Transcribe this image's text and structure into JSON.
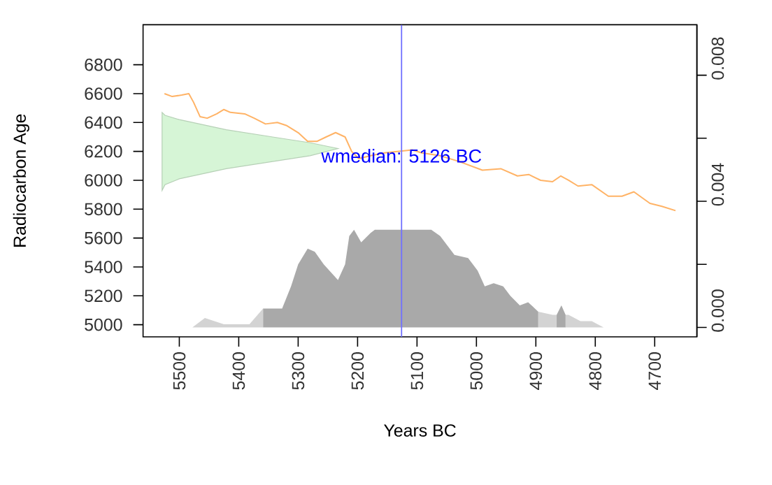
{
  "chart_data": {
    "type": "line",
    "xlabel": "Years BC",
    "ylabel": "Radiocarbon Age",
    "xlim": [
      5561,
      4629
    ],
    "ylim": [
      4916,
      7077
    ],
    "y2lim": [
      -0.0003,
      0.0096
    ],
    "xticks": [
      5500,
      5400,
      5300,
      5200,
      5100,
      5000,
      4900,
      4800,
      4700
    ],
    "yticks": [
      5000,
      5200,
      5400,
      5600,
      5800,
      6000,
      6200,
      6400,
      6600,
      6800
    ],
    "y2ticks": [
      {
        "value": 0,
        "label": "0.000"
      },
      {
        "value": 0.002,
        "label": null
      },
      {
        "value": 0.004,
        "label": "0.004"
      },
      {
        "value": 0.006,
        "label": null
      },
      {
        "value": 0.008,
        "label": "0.008"
      }
    ],
    "ref_lines": [
      {
        "axis": "x",
        "value": 5126,
        "label": "wmedian: 5126 BC",
        "color": "#7070ff"
      }
    ],
    "series": [
      {
        "type": "area",
        "axis": "y2",
        "color": "#d3d3d3",
        "x": [
          5478,
          5457,
          5425,
          5382,
          5359,
          5358,
          4896,
          4872,
          4865,
          4864,
          4850,
          4845,
          4825,
          4806,
          4786,
          4716,
          4715
        ],
        "values": [
          0,
          0.0003,
          0.0001,
          0.0001,
          0.0006,
          null,
          0.0005,
          0.0004,
          0.0004,
          null,
          0.0004,
          0.0004,
          0.0002,
          0.0002,
          0,
          0,
          0
        ]
      },
      {
        "type": "area",
        "axis": "y2",
        "color": "#a9a9a9",
        "x": [
          5359,
          5327,
          5312,
          5300,
          5284,
          5272,
          5257,
          5233,
          5221,
          5214,
          5206,
          5194,
          5178,
          5171,
          5076,
          5061,
          5049,
          5037,
          5014,
          4998,
          4986,
          4971,
          4955,
          4943,
          4927,
          4913,
          4896,
          4880,
          4865,
          4857,
          4850
        ],
        "values": [
          0.0006,
          0.0006,
          0.0013,
          0.002,
          0.0025,
          0.0024,
          0.002,
          0.0015,
          0.002,
          0.0029,
          0.0031,
          0.0027,
          0.003,
          0.0031,
          0.0031,
          0.0029,
          0.0026,
          0.0023,
          0.0022,
          0.0018,
          0.0013,
          0.0014,
          0.0013,
          0.001,
          0.0007,
          0.0008,
          0.0005,
          null,
          0.0004,
          0.0007,
          0.0004
        ]
      },
      {
        "type": "area",
        "color": "#d6f5d6",
        "x": [
          5529,
          5524,
          5500,
          5421,
          5343,
          5280,
          5233
        ],
        "values": [
          null,
          null,
          null,
          null,
          null,
          null,
          null
        ],
        "lower": [
          5930,
          5970,
          6010,
          6080,
          6130,
          6170,
          6220
        ],
        "upper": [
          6470,
          6450,
          6420,
          6350,
          6300,
          6260,
          6220
        ]
      },
      {
        "color": "#ffb366",
        "x": [
          5525,
          5512,
          5496,
          5484,
          5476,
          5465,
          5453,
          5437,
          5425,
          5414,
          5390,
          5374,
          5355,
          5335,
          5320,
          5300,
          5284,
          5268,
          5253,
          5237,
          5221,
          5210,
          5198,
          5178,
          5155,
          5108,
          5092,
          5061,
          5029,
          4990,
          4959,
          4931,
          4912,
          4892,
          4872,
          4858,
          4845,
          4829,
          4806,
          4778,
          4755,
          4735,
          4708,
          4688,
          4665
        ],
        "values": [
          6600,
          6580,
          6590,
          6600,
          6540,
          6440,
          6430,
          6460,
          6490,
          6470,
          6460,
          6430,
          6390,
          6400,
          6380,
          6330,
          6270,
          6270,
          6300,
          6330,
          6300,
          6200,
          6150,
          6170,
          6190,
          6210,
          6190,
          6170,
          6130,
          6070,
          6080,
          6030,
          6040,
          6000,
          5990,
          6030,
          6000,
          5960,
          5970,
          5890,
          5890,
          5920,
          5840,
          5820,
          5790
        ]
      }
    ]
  }
}
